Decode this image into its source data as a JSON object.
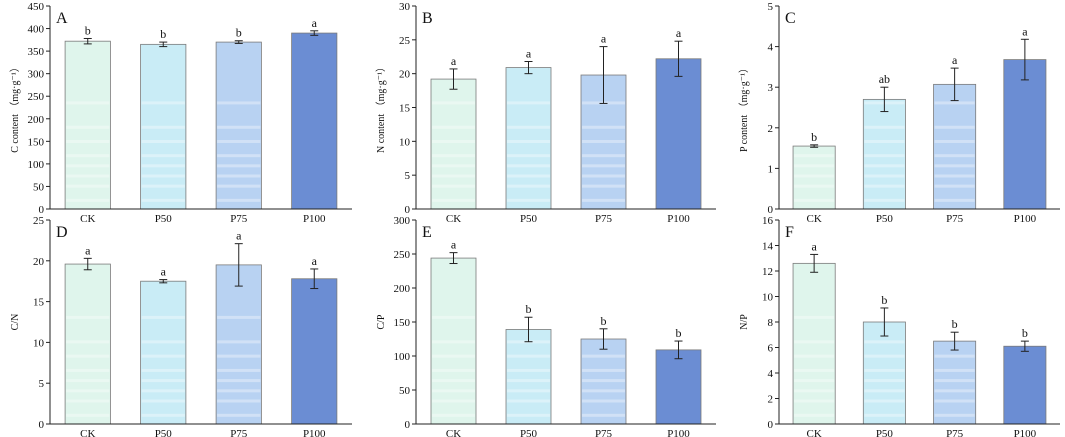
{
  "colors": {
    "CK": "#dff5ec",
    "P50": "#c9ecf6",
    "P75": "#b8d2f2",
    "P100": "#6b8dd3",
    "axis": "#222222",
    "bar_edge": "#7a7a7a",
    "stripe": "#ffffff"
  },
  "chart_data": [
    {
      "panel": "A",
      "type": "bar",
      "categories": [
        "CK",
        "P50",
        "P75",
        "P100"
      ],
      "values": [
        372,
        365,
        370,
        390
      ],
      "errors": [
        6,
        5,
        3,
        5
      ],
      "letters": [
        "b",
        "b",
        "b",
        "a"
      ],
      "ylabel": "C content （mg·g⁻¹）",
      "ylim": [
        0,
        450
      ],
      "yticks": [
        0,
        50,
        100,
        150,
        200,
        250,
        300,
        350,
        400,
        450
      ]
    },
    {
      "panel": "B",
      "type": "bar",
      "categories": [
        "CK",
        "P50",
        "P75",
        "P100"
      ],
      "values": [
        19.2,
        20.9,
        19.8,
        22.2
      ],
      "errors": [
        1.5,
        0.9,
        4.2,
        2.6
      ],
      "letters": [
        "a",
        "a",
        "a",
        "a"
      ],
      "ylabel": "N content （mg·g⁻¹）",
      "ylim": [
        0,
        30
      ],
      "yticks": [
        0,
        5,
        10,
        15,
        20,
        25,
        30
      ]
    },
    {
      "panel": "C",
      "type": "bar",
      "categories": [
        "CK",
        "P50",
        "P75",
        "P100"
      ],
      "values": [
        1.55,
        2.7,
        3.07,
        3.68
      ],
      "errors": [
        0.03,
        0.3,
        0.4,
        0.5
      ],
      "letters": [
        "b",
        "ab",
        "a",
        "a"
      ],
      "ylabel": "P content （mg·g⁻¹）",
      "ylim": [
        0,
        5
      ],
      "yticks": [
        0,
        1,
        2,
        3,
        4,
        5
      ]
    },
    {
      "panel": "D",
      "type": "bar",
      "categories": [
        "CK",
        "P50",
        "P75",
        "P100"
      ],
      "values": [
        19.6,
        17.5,
        19.5,
        17.8
      ],
      "errors": [
        0.7,
        0.2,
        2.6,
        1.2
      ],
      "letters": [
        "a",
        "a",
        "a",
        "a"
      ],
      "ylabel": "C/N",
      "ylim": [
        0,
        25
      ],
      "yticks": [
        0,
        5,
        10,
        15,
        20,
        25
      ]
    },
    {
      "panel": "E",
      "type": "bar",
      "categories": [
        "CK",
        "P50",
        "P75",
        "P100"
      ],
      "values": [
        244,
        139,
        125,
        109
      ],
      "errors": [
        8,
        18,
        15,
        13
      ],
      "letters": [
        "a",
        "b",
        "b",
        "b"
      ],
      "ylabel": "C/P",
      "ylim": [
        0,
        300
      ],
      "yticks": [
        0,
        50,
        100,
        150,
        200,
        250,
        300
      ]
    },
    {
      "panel": "F",
      "type": "bar",
      "categories": [
        "CK",
        "P50",
        "P75",
        "P100"
      ],
      "values": [
        12.6,
        8.0,
        6.5,
        6.1
      ],
      "errors": [
        0.7,
        1.1,
        0.7,
        0.4
      ],
      "letters": [
        "a",
        "b",
        "b",
        "b"
      ],
      "ylabel": "N/P",
      "ylim": [
        0,
        16
      ],
      "yticks": [
        0,
        2,
        4,
        6,
        8,
        10,
        12,
        14,
        16
      ]
    }
  ]
}
